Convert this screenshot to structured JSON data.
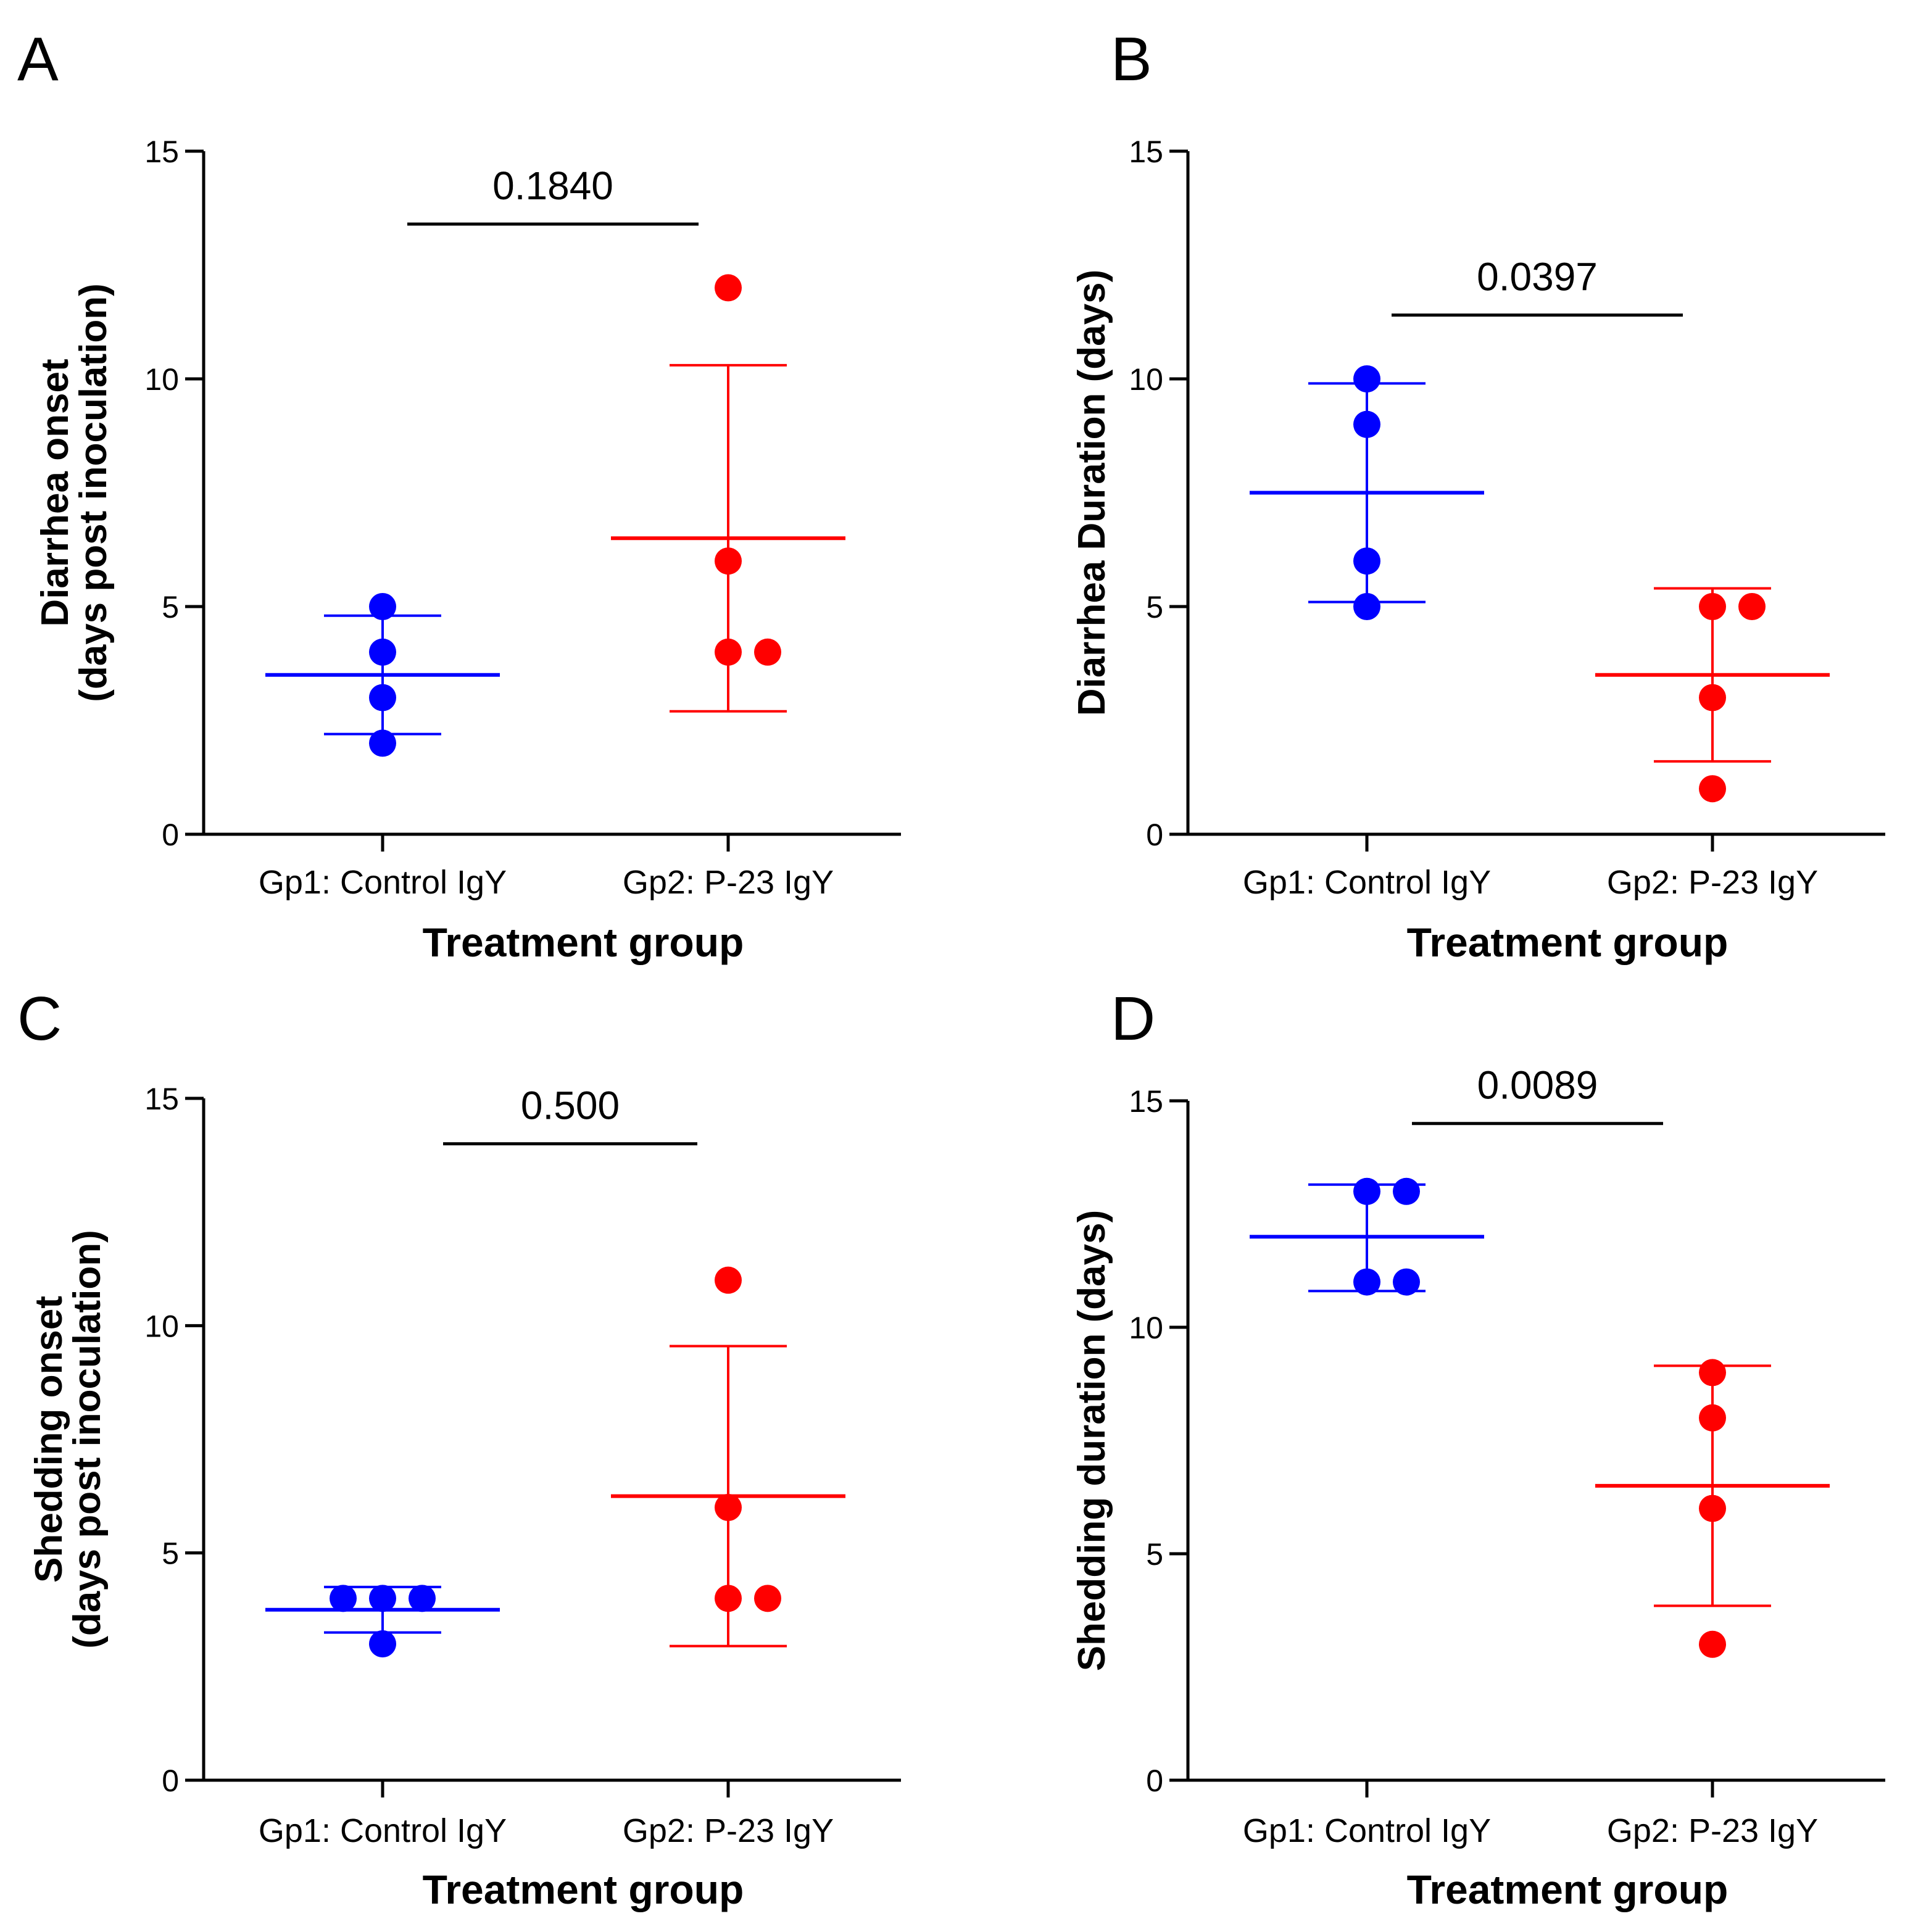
{
  "colors": {
    "control": "#0000ff",
    "treatment": "#ff0000",
    "axis": "#000000"
  },
  "chart_data": [
    {
      "type": "scatter",
      "panel": "A",
      "title": "",
      "xlabel": "Treatment group",
      "ylabel": [
        "Diarrhea onset",
        "(days post inoculation)"
      ],
      "ylim": [
        0,
        15
      ],
      "yticks": [
        0,
        5,
        10,
        15
      ],
      "categories": [
        "Gp1:  Control  IgY",
        "Gp2:  P-23 IgY"
      ],
      "series": [
        {
          "name": "Gp1: Control IgY",
          "color": "#0000ff",
          "points": [
            5,
            4,
            3,
            2
          ],
          "mean": 3.5,
          "error_low": 2.2,
          "error_high": 4.8
        },
        {
          "name": "Gp2: P-23 IgY",
          "color": "#ff0000",
          "points": [
            12,
            6,
            4,
            4
          ],
          "mean": 6.5,
          "error_low": 2.7,
          "error_high": 10.3
        }
      ],
      "pvalue": "0.1840",
      "pvalue_y": 13.4
    },
    {
      "type": "scatter",
      "panel": "B",
      "title": "",
      "xlabel": "Treatment group",
      "ylabel": [
        "Diarrhea Duration (days)"
      ],
      "ylim": [
        0,
        15
      ],
      "yticks": [
        0,
        5,
        10,
        15
      ],
      "categories": [
        "Gp1:  Control  IgY",
        "Gp2:  P-23 IgY"
      ],
      "series": [
        {
          "name": "Gp1: Control IgY",
          "color": "#0000ff",
          "points": [
            10,
            9,
            6,
            5
          ],
          "mean": 7.5,
          "error_low": 5.1,
          "error_high": 9.9
        },
        {
          "name": "Gp2: P-23 IgY",
          "color": "#ff0000",
          "points": [
            5,
            5,
            3,
            1
          ],
          "mean": 3.5,
          "error_low": 1.6,
          "error_high": 5.4
        }
      ],
      "pvalue": "0.0397",
      "pvalue_y": 11.4
    },
    {
      "type": "scatter",
      "panel": "C",
      "title": "",
      "xlabel": "Treatment group",
      "ylabel": [
        "Shedding onset",
        "(days post inoculation)"
      ],
      "ylim": [
        0,
        15
      ],
      "yticks": [
        0,
        5,
        10,
        15
      ],
      "categories": [
        "Gp1:  Control  IgY",
        "Gp2:  P-23 IgY"
      ],
      "series": [
        {
          "name": "Gp1: Control IgY",
          "color": "#0000ff",
          "points": [
            4,
            4,
            4,
            3
          ],
          "mean": 3.75,
          "error_low": 3.25,
          "error_high": 4.25
        },
        {
          "name": "Gp2: P-23 IgY",
          "color": "#ff0000",
          "points": [
            11,
            6,
            4,
            4
          ],
          "mean": 6.25,
          "error_low": 2.95,
          "error_high": 9.55
        }
      ],
      "pvalue": "0.500",
      "pvalue_y": 14.0
    },
    {
      "type": "scatter",
      "panel": "D",
      "title": "",
      "xlabel": "Treatment group",
      "ylabel": [
        "Shedding duration (days)"
      ],
      "ylim": [
        0,
        15
      ],
      "yticks": [
        0,
        5,
        10,
        15
      ],
      "categories": [
        "Gp1:  Control  IgY",
        "Gp2:  P-23 IgY"
      ],
      "series": [
        {
          "name": "Gp1: Control IgY",
          "color": "#0000ff",
          "points": [
            13,
            13,
            11,
            11
          ],
          "mean": 12.0,
          "error_low": 10.8,
          "error_high": 13.15
        },
        {
          "name": "Gp2: P-23 IgY",
          "color": "#ff0000",
          "points": [
            9,
            8,
            6,
            3
          ],
          "mean": 6.5,
          "error_low": 3.85,
          "error_high": 9.15
        }
      ],
      "pvalue": "0.0089",
      "pvalue_y": 14.5
    }
  ]
}
